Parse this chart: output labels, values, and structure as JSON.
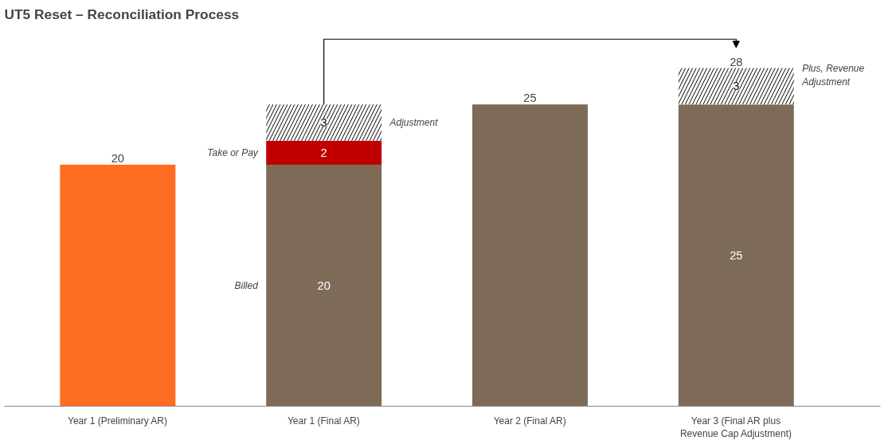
{
  "chart_data": {
    "type": "bar",
    "title": "UT5 Reset – Reconciliation Process",
    "stacked": true,
    "data_labels": true,
    "categories": [
      "Year 1 (Preliminary AR)",
      "Year 1 (Final AR)",
      "Year 2 (Final AR)",
      "Year 3 (Final AR plus Revenue Cap Adjustment)"
    ],
    "series": [
      {
        "colors": [
          "#ff6d22",
          "#7d6b58",
          "#7d6b58",
          "#7d6b58"
        ],
        "values": [
          20,
          20,
          25,
          25
        ],
        "value_labels": [
          null,
          "20",
          null,
          "25"
        ]
      },
      {
        "color": "#c00000",
        "values": [
          null,
          2,
          null,
          null
        ],
        "value_labels": [
          null,
          "2",
          null,
          null
        ]
      },
      {
        "color": "#ffffff",
        "values": [
          null,
          3,
          null,
          3
        ],
        "value_labels": [
          null,
          "3",
          null,
          "3"
        ]
      }
    ],
    "totals": [
      "20",
      null,
      "25",
      "28"
    ],
    "annotations": [
      "Take or Pay",
      "Adjustment",
      "Billed",
      "Plus, Revenue Adjustment"
    ]
  }
}
